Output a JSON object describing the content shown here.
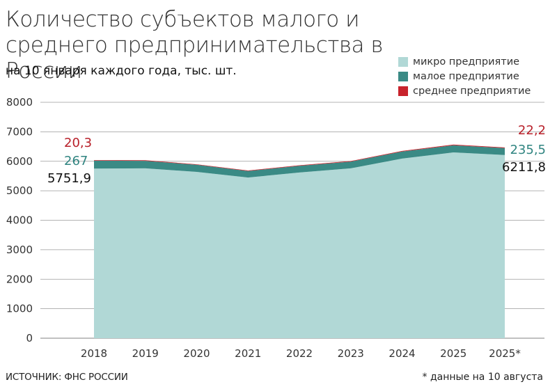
{
  "header": {
    "title": "Количество субъектов малого и среднего предпринимательства в России",
    "subtitle": "на 10 января каждого года, тыс. шт."
  },
  "legend": [
    {
      "label": "микро предприятие",
      "color": "#b1d8d6"
    },
    {
      "label": "малое предприятие",
      "color": "#3a8a85"
    },
    {
      "label": "среднее предприятие",
      "color": "#c8232c"
    }
  ],
  "footer": {
    "source": "ИСТОЧНИК: ФНС РОССИИ",
    "note": "* данные на 10 августа"
  },
  "chart_data": {
    "type": "area",
    "stacked": true,
    "title": "Количество субъектов малого и среднего предпринимательства в России",
    "subtitle": "на 10 января каждого года, тыс. шт.",
    "categories": [
      "2018",
      "2019",
      "2020",
      "2021",
      "2022",
      "2023",
      "2024",
      "2025",
      "2025*"
    ],
    "series": [
      {
        "name": "микро предприятие",
        "color": "#b1d8d6",
        "values": [
          5751.9,
          5760,
          5640,
          5450,
          5620,
          5760,
          6090,
          6300,
          6211.8
        ]
      },
      {
        "name": "малое предприятие",
        "color": "#3a8a85",
        "values": [
          267,
          255,
          240,
          220,
          225,
          230,
          240,
          245,
          235.5
        ]
      },
      {
        "name": "среднее предприятие",
        "color": "#c8232c",
        "values": [
          20.3,
          19.5,
          18.5,
          18,
          18.5,
          19,
          20,
          21,
          22.2
        ]
      }
    ],
    "ylim": [
      0,
      8000
    ],
    "yticks": [
      0,
      1000,
      2000,
      3000,
      4000,
      5000,
      6000,
      7000,
      8000
    ],
    "grid": true,
    "annotations": {
      "start": {
        "micro": "5751,9",
        "small": "267",
        "medium": "20,3"
      },
      "end": {
        "micro": "6211,8",
        "small": "235,5",
        "medium": "22,2"
      }
    }
  }
}
